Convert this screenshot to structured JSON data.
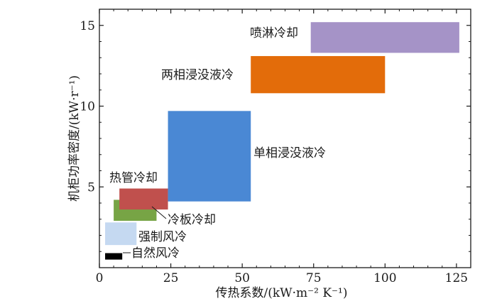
{
  "chart_data": {
    "type": "range-rectangles",
    "title": "",
    "xlabel": "传热系数/(kW·m⁻² K⁻¹)",
    "ylabel": "机柜功率密度/(kW·r⁻¹)",
    "xlim": [
      0,
      130
    ],
    "ylim": [
      0,
      16
    ],
    "xticks": [
      0,
      25,
      50,
      75,
      100,
      125
    ],
    "yticks": [
      5,
      10,
      15
    ],
    "grid": false,
    "series": [
      {
        "name": "自然风冷",
        "x": [
          2,
          8
        ],
        "y": [
          0.5,
          0.9
        ],
        "color": "#000000"
      },
      {
        "name": "强制风冷",
        "x": [
          2,
          13
        ],
        "y": [
          1.4,
          2.8
        ],
        "color": "#c5d9f1"
      },
      {
        "name": "冷板冷却",
        "x": [
          5,
          20
        ],
        "y": [
          2.9,
          4.2
        ],
        "color": "#77a445"
      },
      {
        "name": "热管冷却",
        "x": [
          7,
          24
        ],
        "y": [
          3.6,
          4.9
        ],
        "color": "#c0504d"
      },
      {
        "name": "单相浸没液冷",
        "x": [
          24,
          53
        ],
        "y": [
          4.1,
          9.7
        ],
        "color": "#4a88d4"
      },
      {
        "name": "两相浸没液冷",
        "x": [
          53,
          100
        ],
        "y": [
          10.8,
          13.1
        ],
        "color": "#e36c0a"
      },
      {
        "name": "喷淋冷却",
        "x": [
          74,
          126
        ],
        "y": [
          13.3,
          15.2
        ],
        "color": "#a593c7"
      }
    ]
  }
}
